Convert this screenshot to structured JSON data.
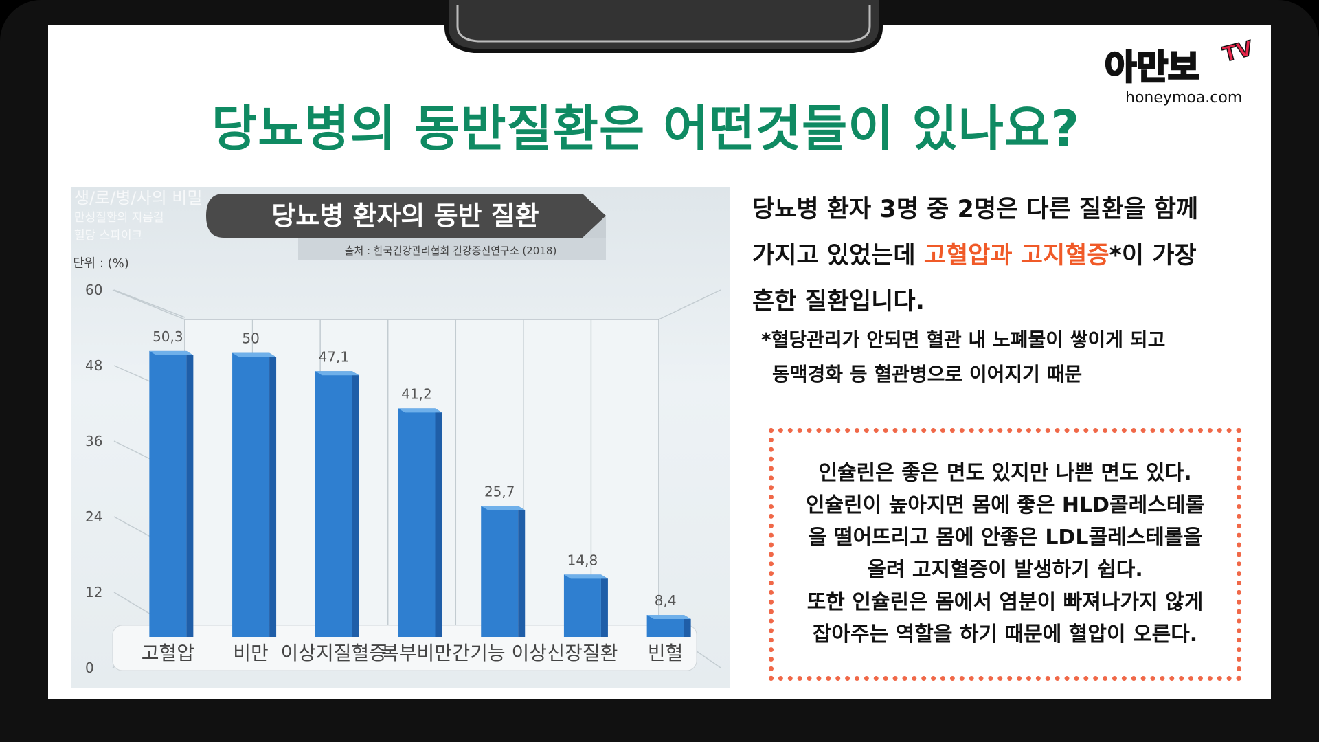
{
  "title": "당뇨병의 동반질환은 어떤것들이 있나요?",
  "logo": {
    "brand": "아만보",
    "tv": "TV",
    "url": "honeymoa.com"
  },
  "chart_data": {
    "type": "bar",
    "title": "당뇨병 환자의 동반 질환",
    "source": "출처 : 한국건강관리협회 건강증진연구소 (2018)",
    "unit_label": "단위 : (%)",
    "watermark": [
      "생/로/병/사의 비밀",
      "만성질환의 지름길",
      "혈당 스파이크"
    ],
    "categories": [
      "고혈압",
      "비만",
      "이상지질혈증",
      "복부비만",
      "간기능 이상",
      "신장질환",
      "빈혈"
    ],
    "values": [
      50.3,
      50,
      47.1,
      41.2,
      25.7,
      14.8,
      8.4
    ],
    "value_labels": [
      "50,3",
      "50",
      "47,1",
      "41,2",
      "25,7",
      "14,8",
      "8,4"
    ],
    "yticks": [
      "0",
      "12",
      "24",
      "36",
      "48",
      "60"
    ],
    "ylim": [
      0,
      60
    ],
    "bar_color": "#2f7fd0",
    "grid": true
  },
  "desc": {
    "line1": "당뇨병 환자 3명 중 2명은 다른 질환을 함께",
    "line2_a": "가지고 있었는데 ",
    "line2_hl": "고혈압과 고지혈증",
    "line2_b": "*이 가장",
    "line3": "흔한 질환입니다."
  },
  "note": {
    "line1": "*혈당관리가 안되면 혈관 내 노폐물이 쌓이게 되고",
    "line2": "동맥경화 등 혈관병으로 이어지기 때문"
  },
  "box": {
    "lines": [
      "인슐린은 좋은 면도 있지만 나쁜 면도 있다.",
      "인슐린이 높아지면 몸에 좋은 HLD콜레스테롤",
      "을 떨어뜨리고 몸에 안좋은 LDL콜레스테롤을",
      "올려 고지혈증이 발생하기 쉽다.",
      "또한 인슐린은 몸에서 염분이 빠져나가지 않게",
      "잡아주는 역할을 하기 때문에 혈압이 오른다."
    ]
  },
  "colors": {
    "title": "#0f8a62",
    "highlight": "#f05a28",
    "box_border": "#f06848",
    "logo": "#ffb400"
  }
}
